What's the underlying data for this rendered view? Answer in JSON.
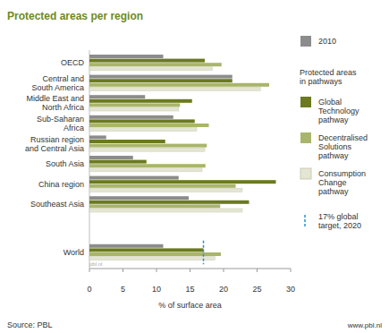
{
  "chart_data": {
    "type": "bar",
    "orientation": "horizontal",
    "title": "Protected areas per region",
    "x_label": "% of surface area",
    "legend_title": "Protected areas in pathways",
    "source": "Source: PBL",
    "credit": "www.pbl.nl",
    "watermark": "pbl.nl",
    "categories": [
      "OECD",
      "Central and South America",
      "Middle East and North Africa",
      "Sub-Saharan Africa",
      "Russian region and Central Asia",
      "South Asia",
      "China region",
      "Southeast Asia",
      "World"
    ],
    "series": [
      {
        "name": "2010",
        "color": "#8c8c8c",
        "values": [
          11,
          21.3,
          8.3,
          12.5,
          2.5,
          6.5,
          13.3,
          14.8,
          11
        ]
      },
      {
        "name": "Global Technology pathway",
        "color": "#6b7a1f",
        "values": [
          17.2,
          21.3,
          15.3,
          15.7,
          11.3,
          8.5,
          27.8,
          23.8,
          17
        ]
      },
      {
        "name": "Decentralised Solutions pathway",
        "color": "#a9b56a",
        "values": [
          19.7,
          26.8,
          13.5,
          17.8,
          17.5,
          17.3,
          21.8,
          19.5,
          19.6
        ]
      },
      {
        "name": "Consumption Change pathway",
        "color": "#e4e6d3",
        "values": [
          18.3,
          25.5,
          13.3,
          16,
          17.2,
          16.8,
          22.8,
          22.8,
          18.7
        ]
      }
    ],
    "annotations": [
      {
        "text": "17% global target, 2020",
        "value": 17,
        "color": "#2a8fd6"
      }
    ],
    "xlim": [
      0,
      30
    ],
    "xticks": [
      0,
      5,
      10,
      15,
      20,
      25,
      30
    ],
    "grid": false,
    "legend": "right"
  }
}
